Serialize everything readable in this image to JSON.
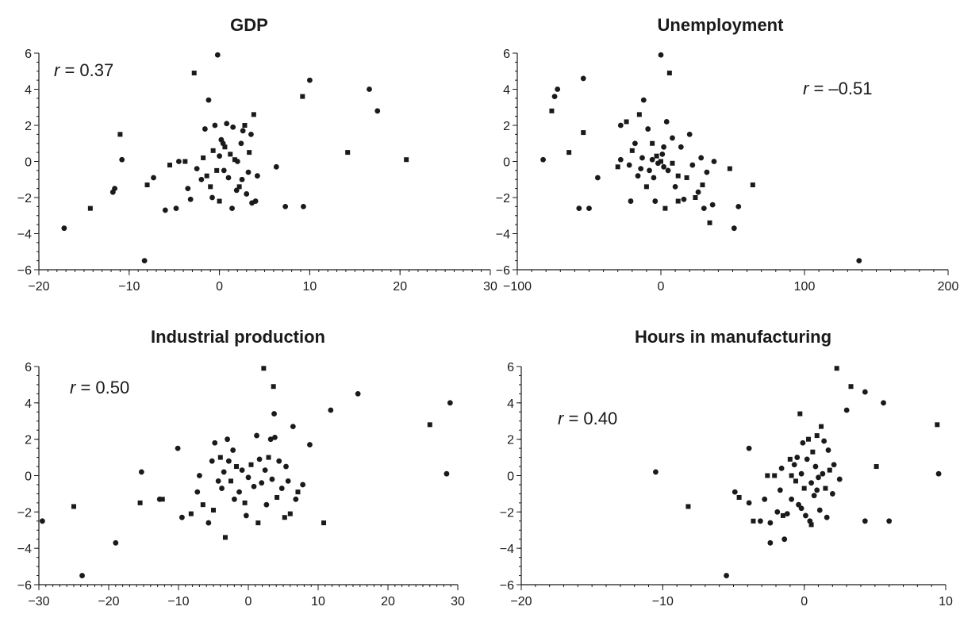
{
  "chart_data": [
    {
      "type": "scatter",
      "title": "GDP",
      "annotation": {
        "symbol": "r",
        "text": " = 0.37"
      },
      "xlim": [
        -20,
        30
      ],
      "ylim": [
        -6,
        6
      ],
      "xticks": [
        -20,
        -10,
        0,
        10,
        20,
        30
      ],
      "yticks": [
        -6,
        -4,
        -2,
        0,
        2,
        4,
        6
      ],
      "xtick_labels": [
        "−20",
        "−10",
        "0",
        "10",
        "20",
        "30"
      ],
      "ytick_labels": [
        "−6",
        "−4",
        "−2",
        "0",
        "2",
        "4",
        "6"
      ],
      "points": [
        [
          -17.2,
          -3.7
        ],
        [
          -14.3,
          -2.6
        ],
        [
          -11.8,
          -1.7
        ],
        [
          -11.6,
          -1.5
        ],
        [
          -11.0,
          1.5
        ],
        [
          -10.8,
          0.1
        ],
        [
          -8.3,
          -5.5
        ],
        [
          -8.0,
          -1.3
        ],
        [
          -7.3,
          -0.9
        ],
        [
          -6.0,
          -2.7
        ],
        [
          -5.5,
          -0.2
        ],
        [
          -4.8,
          -2.6
        ],
        [
          -4.5,
          0.0
        ],
        [
          -3.8,
          0.0
        ],
        [
          -3.5,
          -1.5
        ],
        [
          -3.2,
          -2.1
        ],
        [
          -2.8,
          4.9
        ],
        [
          -2.5,
          -0.4
        ],
        [
          -2.0,
          -1.0
        ],
        [
          -1.8,
          0.2
        ],
        [
          -1.6,
          1.8
        ],
        [
          -1.2,
          3.4
        ],
        [
          -1.0,
          -1.4
        ],
        [
          -0.8,
          -2.0
        ],
        [
          -0.5,
          2.0
        ],
        [
          -0.3,
          -0.5
        ],
        [
          -0.2,
          5.9
        ],
        [
          0.0,
          0.3
        ],
        [
          0.0,
          -2.2
        ],
        [
          0.2,
          1.2
        ],
        [
          0.5,
          -0.5
        ],
        [
          0.6,
          0.8
        ],
        [
          0.8,
          2.1
        ],
        [
          1.0,
          -0.9
        ],
        [
          1.2,
          0.4
        ],
        [
          1.4,
          -2.6
        ],
        [
          1.5,
          1.9
        ],
        [
          1.7,
          0.1
        ],
        [
          1.9,
          -1.6
        ],
        [
          2.0,
          0.0
        ],
        [
          2.2,
          -1.4
        ],
        [
          2.4,
          1.0
        ],
        [
          2.6,
          1.7
        ],
        [
          2.8,
          2.0
        ],
        [
          3.0,
          -1.8
        ],
        [
          3.2,
          -0.6
        ],
        [
          3.3,
          0.5
        ],
        [
          3.5,
          1.5
        ],
        [
          3.6,
          -2.3
        ],
        [
          3.8,
          2.6
        ],
        [
          4.0,
          -2.2
        ],
        [
          4.2,
          -0.8
        ],
        [
          -1.4,
          -0.8
        ],
        [
          0.4,
          1.0
        ],
        [
          2.5,
          -1.0
        ],
        [
          -0.7,
          0.6
        ],
        [
          6.3,
          -0.3
        ],
        [
          7.3,
          -2.5
        ],
        [
          9.2,
          3.6
        ],
        [
          9.3,
          -2.5
        ],
        [
          10.0,
          4.5
        ],
        [
          14.2,
          0.5
        ],
        [
          16.6,
          4.0
        ],
        [
          17.5,
          2.8
        ],
        [
          20.7,
          0.1
        ]
      ]
    },
    {
      "type": "scatter",
      "title": "Unemployment",
      "annotation": {
        "symbol": "r",
        "text": " = –0.51"
      },
      "xlim": [
        -100,
        200
      ],
      "ylim": [
        -6,
        6
      ],
      "xticks": [
        -100,
        0,
        100,
        200
      ],
      "yticks": [
        -6,
        -4,
        -2,
        0,
        2,
        4,
        6
      ],
      "xtick_labels": [
        "−100",
        "0",
        "100",
        "200"
      ],
      "ytick_labels": [
        "−6",
        "−4",
        "−2",
        "0",
        "2",
        "4",
        "6"
      ],
      "points": [
        [
          -82,
          0.1
        ],
        [
          -76,
          2.8
        ],
        [
          -74,
          3.6
        ],
        [
          -72,
          4.0
        ],
        [
          -64,
          0.5
        ],
        [
          -57,
          -2.6
        ],
        [
          -54,
          4.6
        ],
        [
          -54,
          1.6
        ],
        [
          -50,
          -2.6
        ],
        [
          -44,
          -0.9
        ],
        [
          -30,
          -0.3
        ],
        [
          -28,
          0.1
        ],
        [
          -28,
          2.0
        ],
        [
          -24,
          2.2
        ],
        [
          -22,
          -0.2
        ],
        [
          -21,
          -2.2
        ],
        [
          -20,
          0.6
        ],
        [
          -18,
          1.0
        ],
        [
          -16,
          -0.8
        ],
        [
          -15,
          2.6
        ],
        [
          -13,
          0.2
        ],
        [
          -12,
          3.4
        ],
        [
          -10,
          -1.4
        ],
        [
          -9,
          1.8
        ],
        [
          -8,
          -0.5
        ],
        [
          -6,
          1.0
        ],
        [
          -5,
          -0.9
        ],
        [
          -4,
          -2.2
        ],
        [
          -3,
          0.3
        ],
        [
          -2,
          -0.1
        ],
        [
          0,
          5.9
        ],
        [
          0,
          0.0
        ],
        [
          1,
          0.4
        ],
        [
          2,
          -0.3
        ],
        [
          3,
          -2.6
        ],
        [
          4,
          2.2
        ],
        [
          5,
          -0.5
        ],
        [
          6,
          4.9
        ],
        [
          8,
          1.3
        ],
        [
          10,
          -1.4
        ],
        [
          12,
          -0.8
        ],
        [
          14,
          0.8
        ],
        [
          16,
          -2.1
        ],
        [
          18,
          -0.9
        ],
        [
          20,
          1.5
        ],
        [
          22,
          -0.2
        ],
        [
          24,
          -2.0
        ],
        [
          26,
          -1.7
        ],
        [
          28,
          0.2
        ],
        [
          29,
          -1.3
        ],
        [
          30,
          -2.6
        ],
        [
          32,
          -0.6
        ],
        [
          34,
          -3.4
        ],
        [
          36,
          -2.4
        ],
        [
          37,
          0.0
        ],
        [
          48,
          -0.4
        ],
        [
          51,
          -3.7
        ],
        [
          54,
          -2.5
        ],
        [
          64,
          -1.3
        ],
        [
          138,
          -5.5
        ],
        [
          -6,
          0.1
        ],
        [
          8,
          -0.1
        ],
        [
          -14,
          -0.4
        ],
        [
          2,
          0.8
        ],
        [
          12,
          -2.2
        ]
      ]
    },
    {
      "type": "scatter",
      "title": "Industrial production",
      "annotation": {
        "symbol": "r",
        "text": " = 0.50"
      },
      "xlim": [
        -30,
        30
      ],
      "ylim": [
        -6,
        6
      ],
      "xticks": [
        -30,
        -20,
        -10,
        0,
        10,
        20,
        30
      ],
      "yticks": [
        -6,
        -4,
        -2,
        0,
        2,
        4,
        6
      ],
      "xtick_labels": [
        "−30",
        "−20",
        "−10",
        "0",
        "10",
        "20",
        "30"
      ],
      "ytick_labels": [
        "−6",
        "−4",
        "−2",
        "0",
        "2",
        "4",
        "6"
      ],
      "points": [
        [
          -29.5,
          -2.5
        ],
        [
          -25.0,
          -1.7
        ],
        [
          -23.8,
          -5.5
        ],
        [
          -19.0,
          -3.7
        ],
        [
          -15.5,
          -1.5
        ],
        [
          -15.3,
          0.2
        ],
        [
          -12.7,
          -1.3
        ],
        [
          -12.3,
          -1.3
        ],
        [
          -10.1,
          1.5
        ],
        [
          -9.5,
          -2.3
        ],
        [
          -8.2,
          -2.1
        ],
        [
          -7.3,
          -0.9
        ],
        [
          -7.0,
          0.0
        ],
        [
          -6.5,
          -1.6
        ],
        [
          -5.7,
          -2.6
        ],
        [
          -5.2,
          0.8
        ],
        [
          -5.0,
          -1.9
        ],
        [
          -4.8,
          1.8
        ],
        [
          -4.3,
          -0.3
        ],
        [
          -4.0,
          1.0
        ],
        [
          -3.8,
          -0.7
        ],
        [
          -3.5,
          0.2
        ],
        [
          -3.3,
          -3.4
        ],
        [
          -3.0,
          2.0
        ],
        [
          -2.8,
          0.8
        ],
        [
          -2.5,
          -0.3
        ],
        [
          -2.2,
          1.4
        ],
        [
          -2.0,
          -1.3
        ],
        [
          -1.7,
          0.5
        ],
        [
          -1.3,
          -0.9
        ],
        [
          -0.9,
          0.3
        ],
        [
          -0.5,
          -1.5
        ],
        [
          -0.3,
          -2.2
        ],
        [
          0.0,
          -0.1
        ],
        [
          0.4,
          0.6
        ],
        [
          0.8,
          -0.6
        ],
        [
          1.2,
          2.2
        ],
        [
          1.4,
          -2.6
        ],
        [
          1.6,
          0.9
        ],
        [
          1.9,
          -0.4
        ],
        [
          2.2,
          5.9
        ],
        [
          2.4,
          0.3
        ],
        [
          2.6,
          -1.6
        ],
        [
          2.9,
          1.0
        ],
        [
          3.2,
          2.0
        ],
        [
          3.4,
          -0.2
        ],
        [
          3.6,
          4.9
        ],
        [
          3.7,
          3.4
        ],
        [
          3.8,
          2.1
        ],
        [
          4.1,
          -1.2
        ],
        [
          4.4,
          0.8
        ],
        [
          4.8,
          -0.7
        ],
        [
          5.2,
          -2.3
        ],
        [
          5.4,
          0.5
        ],
        [
          5.7,
          -0.3
        ],
        [
          6.0,
          -2.1
        ],
        [
          6.4,
          2.7
        ],
        [
          6.8,
          -1.3
        ],
        [
          7.1,
          -0.9
        ],
        [
          7.8,
          -0.5
        ],
        [
          8.8,
          1.7
        ],
        [
          10.8,
          -2.6
        ],
        [
          11.8,
          3.6
        ],
        [
          15.7,
          4.5
        ],
        [
          26.0,
          2.8
        ],
        [
          28.4,
          0.1
        ],
        [
          28.9,
          4.0
        ]
      ]
    },
    {
      "type": "scatter",
      "title": "Hours in manufacturing",
      "annotation": {
        "symbol": "r",
        "text": " = 0.40"
      },
      "xlim": [
        -20,
        10
      ],
      "ylim": [
        -6,
        6
      ],
      "xticks": [
        -20,
        -10,
        0,
        10
      ],
      "yticks": [
        -6,
        -4,
        -2,
        0,
        2,
        4,
        6
      ],
      "xtick_labels": [
        "−20",
        "−10",
        "0",
        "10"
      ],
      "ytick_labels": [
        "−6",
        "−4",
        "−2",
        "0",
        "2",
        "4",
        "6"
      ],
      "points": [
        [
          -10.5,
          0.2
        ],
        [
          -8.2,
          -1.7
        ],
        [
          -5.5,
          -5.5
        ],
        [
          -4.9,
          -0.9
        ],
        [
          -4.6,
          -1.2
        ],
        [
          -3.9,
          1.5
        ],
        [
          -3.9,
          -1.5
        ],
        [
          -3.6,
          -2.5
        ],
        [
          -3.1,
          -2.5
        ],
        [
          -2.8,
          -1.3
        ],
        [
          -2.6,
          0.0
        ],
        [
          -2.4,
          -2.6
        ],
        [
          -2.4,
          -3.7
        ],
        [
          -2.1,
          0.0
        ],
        [
          -1.9,
          -2.0
        ],
        [
          -1.7,
          -0.8
        ],
        [
          -1.5,
          -2.2
        ],
        [
          -1.4,
          -3.5
        ],
        [
          -1.2,
          -2.1
        ],
        [
          -1.0,
          0.9
        ],
        [
          -0.9,
          -1.3
        ],
        [
          -0.7,
          0.6
        ],
        [
          -0.6,
          -0.3
        ],
        [
          -0.5,
          1.0
        ],
        [
          -0.4,
          -1.6
        ],
        [
          -0.3,
          3.4
        ],
        [
          -0.2,
          0.1
        ],
        [
          -0.1,
          1.8
        ],
        [
          0.0,
          -0.7
        ],
        [
          0.1,
          -2.2
        ],
        [
          0.2,
          0.9
        ],
        [
          0.3,
          2.0
        ],
        [
          0.4,
          -2.5
        ],
        [
          0.5,
          -0.4
        ],
        [
          0.6,
          1.3
        ],
        [
          0.7,
          -1.1
        ],
        [
          0.8,
          0.5
        ],
        [
          0.9,
          2.2
        ],
        [
          1.0,
          -0.1
        ],
        [
          1.1,
          -1.9
        ],
        [
          1.2,
          2.7
        ],
        [
          1.3,
          0.1
        ],
        [
          1.4,
          1.9
        ],
        [
          1.5,
          -0.7
        ],
        [
          1.6,
          -2.3
        ],
        [
          1.7,
          1.4
        ],
        [
          1.8,
          0.3
        ],
        [
          2.0,
          -1.0
        ],
        [
          2.1,
          0.6
        ],
        [
          2.3,
          5.9
        ],
        [
          2.5,
          -0.2
        ],
        [
          3.0,
          3.6
        ],
        [
          3.3,
          4.9
        ],
        [
          4.3,
          4.6
        ],
        [
          4.3,
          -2.5
        ],
        [
          5.1,
          0.5
        ],
        [
          5.6,
          4.0
        ],
        [
          6.0,
          -2.5
        ],
        [
          9.4,
          2.8
        ],
        [
          9.5,
          0.1
        ],
        [
          -0.2,
          -1.8
        ],
        [
          0.5,
          -2.7
        ],
        [
          -1.6,
          0.4
        ],
        [
          0.9,
          -0.8
        ],
        [
          -0.9,
          0.0
        ]
      ]
    }
  ]
}
